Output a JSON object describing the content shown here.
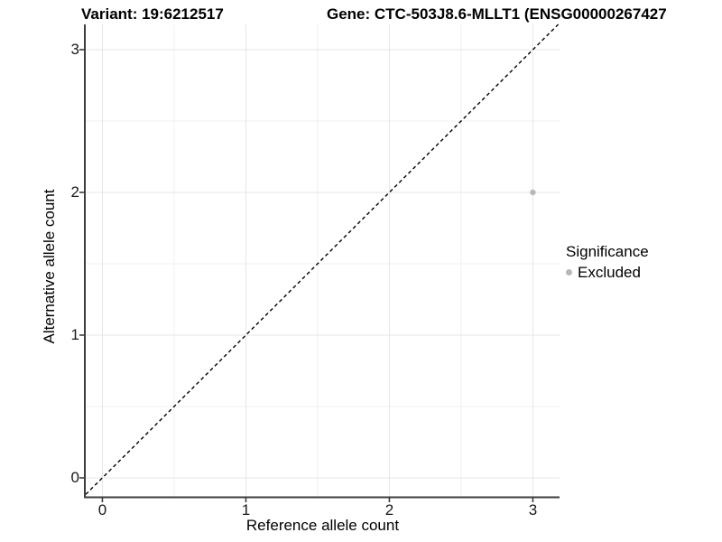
{
  "titles": {
    "variant": "Variant: 19:6212517",
    "gene": "Gene: CTC-503J8.6-MLLT1 (ENSG00000267427"
  },
  "axes": {
    "x_label": "Reference allele count",
    "y_label": "Alternative allele count"
  },
  "legend": {
    "title": "Significance",
    "items": [
      {
        "label": "Excluded",
        "color": "#b8b8b8"
      }
    ]
  },
  "colors": {
    "background": "#ffffff",
    "axis_line": "#3d3d3d",
    "tick_mark": "#3d3d3d",
    "tick_label": "#1a1a1a",
    "grid_major": "#e6e6e6",
    "grid_minor": "#f0f0f0",
    "identity_line": "#000000",
    "point": "#b8b8b8"
  },
  "chart_data": {
    "type": "scatter",
    "title": "Variant: 19:6212517 | Gene: CTC-503J8.6-MLLT1 (ENSG00000267427",
    "xlabel": "Reference allele count",
    "ylabel": "Alternative allele count",
    "xlim": [
      -0.116,
      3.186
    ],
    "ylim": [
      -0.133,
      3.177
    ],
    "x_ticks": [
      0,
      1,
      2,
      3
    ],
    "x_tick_labels": [
      "0",
      "1",
      "2",
      "3"
    ],
    "y_ticks": [
      0,
      1,
      2,
      3
    ],
    "y_tick_labels": [
      "0",
      "1",
      "2",
      "3"
    ],
    "minor_grid_positions": [
      0.5,
      1.5,
      2.5
    ],
    "grid": "major gridlines at integers, minor at halves; light grey on white",
    "legend_position": "right",
    "legend_title": "Significance",
    "series": [
      {
        "name": "Excluded",
        "color": "#b8b8b8",
        "points": [
          {
            "x": 3,
            "y": 2
          }
        ]
      }
    ],
    "reference_line": {
      "kind": "identity y = x",
      "style": "dashed",
      "color": "#000000"
    }
  }
}
